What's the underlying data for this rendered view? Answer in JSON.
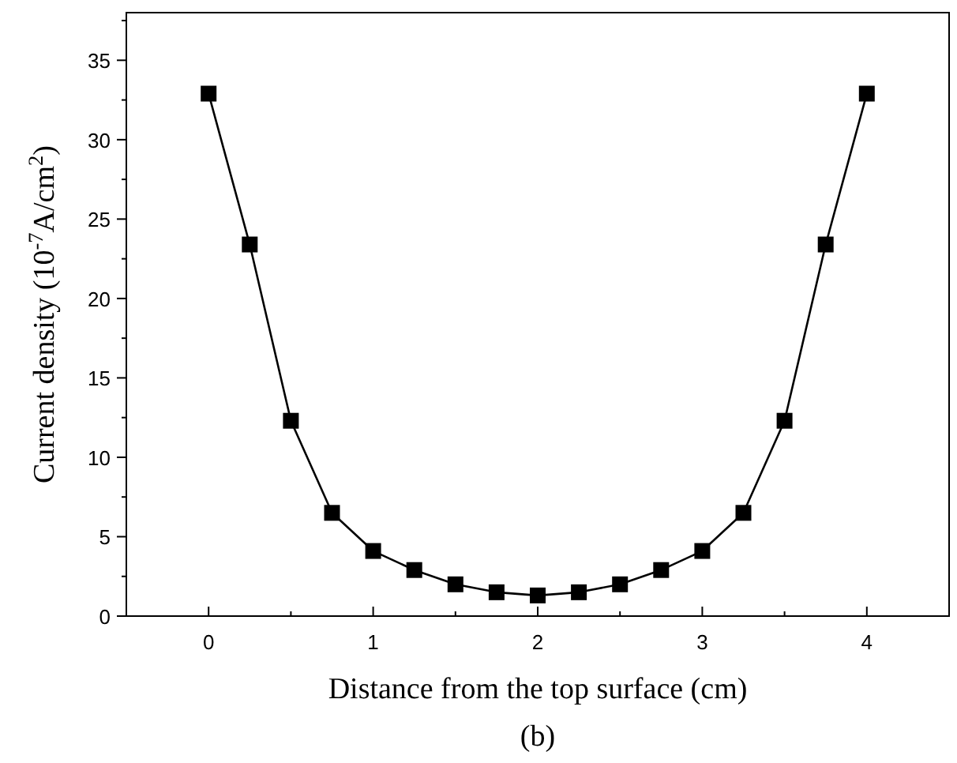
{
  "chart_data": {
    "type": "line",
    "xlabel": "Distance from the top surface (cm)",
    "ylabel": "Current density (10$^{-7}$A/cm$^{2}$)",
    "annotations": [
      "(b)"
    ],
    "x": [
      0,
      0.25,
      0.5,
      0.75,
      1,
      1.25,
      1.5,
      1.75,
      2,
      2.25,
      2.5,
      2.75,
      3,
      3.25,
      3.5,
      3.75,
      4
    ],
    "series": [
      {
        "color": "#000000",
        "values": [
          32.9,
          23.4,
          12.3,
          6.5,
          4.1,
          2.9,
          2.0,
          1.5,
          1.3,
          1.5,
          2.0,
          2.9,
          4.1,
          6.5,
          12.3,
          23.4,
          32.9
        ]
      }
    ],
    "xlim": [
      -0.5,
      4.5
    ],
    "ylim": [
      0,
      38
    ],
    "xticks": [
      {
        "value": -0.5,
        "label": null
      },
      0,
      {
        "value": 0.5,
        "label": null
      },
      1,
      {
        "value": 1.5,
        "label": null
      },
      2,
      {
        "value": 2.5,
        "label": null
      },
      3,
      {
        "value": 3.5,
        "label": null
      },
      4,
      {
        "value": 4.5,
        "label": null
      }
    ],
    "yticks": [
      0,
      {
        "value": 2.5,
        "label": null
      },
      5,
      {
        "value": 7.5,
        "label": null
      },
      10,
      {
        "value": 12.5,
        "label": null
      },
      15,
      {
        "value": 17.5,
        "label": null
      },
      20,
      {
        "value": 22.5,
        "label": null
      },
      25,
      {
        "value": 27.5,
        "label": null
      },
      30,
      {
        "value": 32.5,
        "label": null
      },
      35,
      {
        "value": 37.5,
        "label": null
      }
    ],
    "marker": "square",
    "grid": false
  }
}
